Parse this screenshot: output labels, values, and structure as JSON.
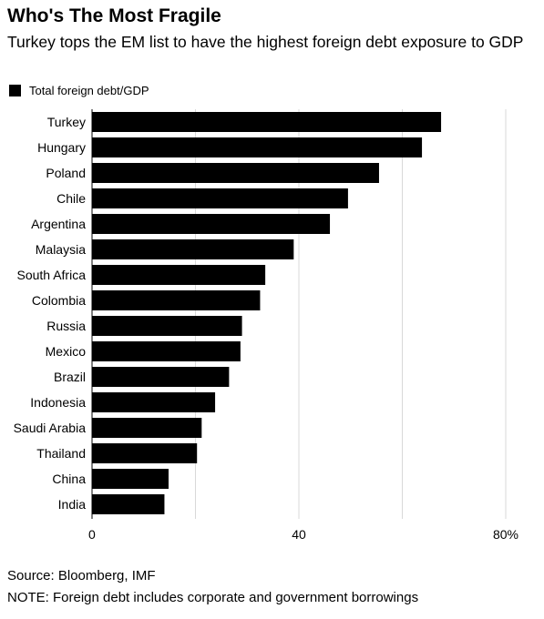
{
  "chart_data": {
    "type": "bar",
    "orientation": "horizontal",
    "title": "Who's The Most Fragile",
    "subtitle": "Turkey tops the EM list to have the highest foreign debt exposure to GDP",
    "categories": [
      "Turkey",
      "Hungary",
      "Poland",
      "Chile",
      "Argentina",
      "Malaysia",
      "South Africa",
      "Colombia",
      "Russia",
      "Mexico",
      "Brazil",
      "Indonesia",
      "Saudi Arabia",
      "Thailand",
      "China",
      "India"
    ],
    "series": [
      {
        "name": "Total foreign debt/GDP",
        "values": [
          67.5,
          63.8,
          55.5,
          49.5,
          46,
          39,
          33.5,
          32.5,
          29,
          28.7,
          26.5,
          23.8,
          21.2,
          20.3,
          14.8,
          14
        ]
      }
    ],
    "xlim": [
      0,
      80
    ],
    "x_ticks": [
      {
        "value": 0,
        "label": "0"
      },
      {
        "value": 40,
        "label": "40"
      },
      {
        "value": 80,
        "label": "80%"
      }
    ],
    "gridlines": [
      20,
      40,
      60,
      80
    ],
    "legend_position": "top-left",
    "bar_color": "#000000"
  },
  "footer": {
    "source": "Source: Bloomberg, IMF",
    "note": "NOTE: Foreign debt includes corporate and government borrowings"
  }
}
